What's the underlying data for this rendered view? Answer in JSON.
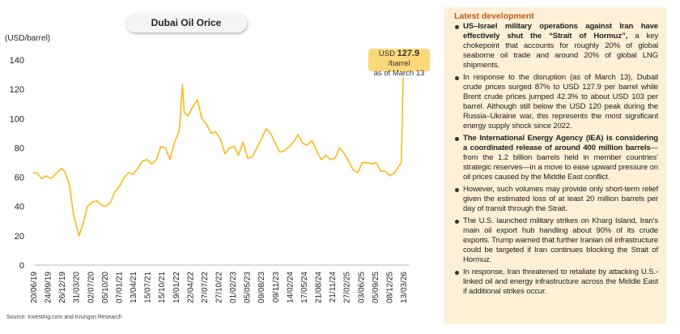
{
  "chart_data": {
    "type": "line",
    "title": "Dubai Oil Orice",
    "ylabel": "(USD/barrel)",
    "xlabel": "",
    "ylim": [
      0,
      140
    ],
    "yticks": [
      0,
      20,
      40,
      60,
      80,
      100,
      120,
      140
    ],
    "grid": false,
    "color": "#fbb917",
    "xtick_labels": [
      "20/06/19",
      "24/09/19",
      "26/12/19",
      "31/03/20",
      "02/07/20",
      "05/10/20",
      "07/01/21",
      "13/04/21",
      "15/07/21",
      "15/10/21",
      "19/01/22",
      "22/04/22",
      "27/07/22",
      "27/10/22",
      "01/02/23",
      "05/05/23",
      "09/08/23",
      "09/11/23",
      "14/02/24",
      "17/05/24",
      "21/08/24",
      "21/11/24",
      "27/02/25",
      "03/06/25",
      "05/09/25",
      "08/12/25",
      "13/03/26"
    ],
    "series": [
      {
        "points": [
          [
            "2019-06-20",
            63
          ],
          [
            "2019-07-15",
            63
          ],
          [
            "2019-08-15",
            59
          ],
          [
            "2019-09-15",
            61
          ],
          [
            "2019-10-15",
            59
          ],
          [
            "2019-11-15",
            62
          ],
          [
            "2019-12-26",
            66
          ],
          [
            "2020-01-15",
            64
          ],
          [
            "2020-02-15",
            55
          ],
          [
            "2020-03-15",
            34
          ],
          [
            "2020-04-20",
            20
          ],
          [
            "2020-05-15",
            28
          ],
          [
            "2020-06-15",
            40
          ],
          [
            "2020-07-15",
            43
          ],
          [
            "2020-08-15",
            44
          ],
          [
            "2020-09-15",
            41
          ],
          [
            "2020-10-15",
            40
          ],
          [
            "2020-11-15",
            43
          ],
          [
            "2020-12-15",
            50
          ],
          [
            "2021-01-15",
            54
          ],
          [
            "2021-02-15",
            60
          ],
          [
            "2021-03-15",
            63
          ],
          [
            "2021-04-15",
            62
          ],
          [
            "2021-05-15",
            66
          ],
          [
            "2021-06-15",
            71
          ],
          [
            "2021-07-15",
            72
          ],
          [
            "2021-08-15",
            69
          ],
          [
            "2021-09-15",
            72
          ],
          [
            "2021-10-15",
            81
          ],
          [
            "2021-11-15",
            80
          ],
          [
            "2021-12-15",
            72
          ],
          [
            "2022-01-15",
            84
          ],
          [
            "2022-02-15",
            92
          ],
          [
            "2022-03-08",
            123
          ],
          [
            "2022-03-20",
            104
          ],
          [
            "2022-04-15",
            102
          ],
          [
            "2022-05-15",
            108
          ],
          [
            "2022-06-15",
            113
          ],
          [
            "2022-07-15",
            100
          ],
          [
            "2022-08-15",
            96
          ],
          [
            "2022-09-15",
            90
          ],
          [
            "2022-10-15",
            91
          ],
          [
            "2022-11-15",
            86
          ],
          [
            "2022-12-15",
            76
          ],
          [
            "2023-01-15",
            80
          ],
          [
            "2023-02-15",
            81
          ],
          [
            "2023-03-15",
            75
          ],
          [
            "2023-04-15",
            84
          ],
          [
            "2023-05-15",
            73
          ],
          [
            "2023-06-15",
            74
          ],
          [
            "2023-07-15",
            80
          ],
          [
            "2023-08-15",
            86
          ],
          [
            "2023-09-15",
            93
          ],
          [
            "2023-10-15",
            90
          ],
          [
            "2023-11-15",
            83
          ],
          [
            "2023-12-15",
            77
          ],
          [
            "2024-01-15",
            78
          ],
          [
            "2024-02-15",
            81
          ],
          [
            "2024-03-15",
            84
          ],
          [
            "2024-04-15",
            89
          ],
          [
            "2024-05-15",
            83
          ],
          [
            "2024-06-15",
            82
          ],
          [
            "2024-07-15",
            85
          ],
          [
            "2024-08-15",
            78
          ],
          [
            "2024-09-15",
            72
          ],
          [
            "2024-10-15",
            75
          ],
          [
            "2024-11-15",
            72
          ],
          [
            "2024-12-15",
            73
          ],
          [
            "2025-01-15",
            80
          ],
          [
            "2025-02-15",
            76
          ],
          [
            "2025-03-15",
            71
          ],
          [
            "2025-04-15",
            65
          ],
          [
            "2025-05-15",
            63
          ],
          [
            "2025-06-15",
            70
          ],
          [
            "2025-07-15",
            70
          ],
          [
            "2025-08-15",
            69
          ],
          [
            "2025-09-15",
            70
          ],
          [
            "2025-10-15",
            64
          ],
          [
            "2025-11-15",
            64
          ],
          [
            "2025-12-15",
            61
          ],
          [
            "2026-01-15",
            63
          ],
          [
            "2026-02-15",
            68
          ],
          [
            "2026-03-01",
            70
          ],
          [
            "2026-03-13",
            127.9
          ]
        ]
      }
    ],
    "annotation": {
      "prefix": "USD",
      "value": "127.9",
      "suffix": "/barrel",
      "line2": "as of March 13"
    }
  },
  "source": "Source: Investing.com and Krungsri Research",
  "panel": {
    "heading": "Latest development",
    "bullets": [
      {
        "bold": "US–Israel military operations against Iran have effectively shut the “Strait of Hormuz”,",
        "text": " a key chokepoint that accounts for roughly 20% of global seaborne oil trade and around 20% of global LNG shipments."
      },
      {
        "bold": "",
        "text": "In response to the disruption (as of March 13), Dubail crude prices surged 87% to USD 127.9 per barrel while Brent crude prices jumped 42.3% to about USD 103 per barrel. Although still below the USD 120 peak during the Russia–Ukraine war, this represents the most significant energy supply shock since 2022."
      },
      {
        "bold": "The International Energy Agency (IEA) is considering a coordinated release of around 400 million barrels",
        "text": "—from the 1.2 billion barrels held in member countries’ strategic reserves—in a move to ease upward pressure on oil prices caused by the Middle East conflict."
      },
      {
        "bold": "",
        "text": "However, such volumes may provide only short-term relief given the estimated loss of at least 20 million barrels per day of transit through the Strait."
      },
      {
        "bold": "",
        "text": "The U.S. launched military strikes on Kharg Island, Iran’s main oil export hub handling about 90% of its crude exports. Trump warned that further Iranian oil infrastructure could be targeted if Iran continues blocking the Strait of Hormuz."
      },
      {
        "bold": "",
        "text": "In response, Iran threatened to retaliate by attacking U.S.-linked oil and energy infrastructure across the Middle East if additional strikes occur."
      }
    ]
  }
}
